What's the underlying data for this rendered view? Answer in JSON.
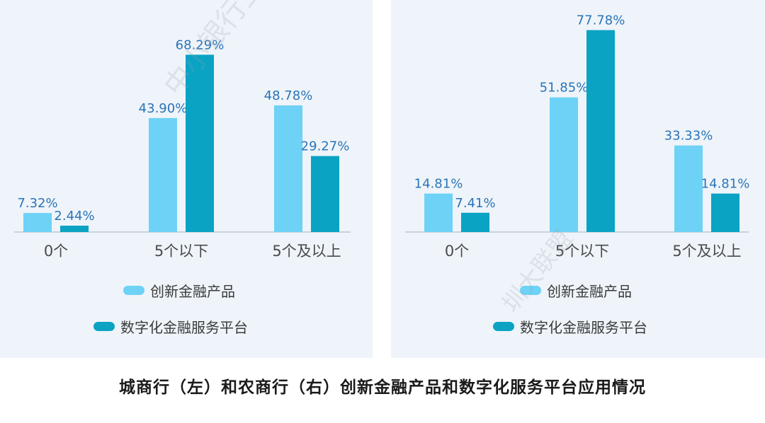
{
  "colors": {
    "series1": "#6dd2f6",
    "series2": "#0aa3c4",
    "axis": "#c9d3dc",
    "value_label": "#2b74b8",
    "tick_label": "#4a4a4a"
  },
  "chart_data": [
    {
      "type": "bar",
      "categories": [
        "0个",
        "5个以下",
        "5个及以上"
      ],
      "series": [
        {
          "name": "创新金融产品",
          "values": [
            7.32,
            43.9,
            48.78
          ],
          "labels": [
            "7.32%",
            "43.90%",
            "48.78%"
          ]
        },
        {
          "name": "数字化金融服务平台",
          "values": [
            2.44,
            68.29,
            29.27
          ],
          "labels": [
            "2.44%",
            "68.29%",
            "29.27%"
          ]
        }
      ],
      "ylim": [
        0,
        100
      ],
      "grid": false,
      "legend": "bottom"
    },
    {
      "type": "bar",
      "categories": [
        "0个",
        "5个以下",
        "5个及以上"
      ],
      "series": [
        {
          "name": "创新金融产品",
          "values": [
            14.81,
            51.85,
            33.33
          ],
          "labels": [
            "14.81%",
            "51.85%",
            "33.33%"
          ]
        },
        {
          "name": "数字化金融服务平台",
          "values": [
            7.41,
            77.78,
            14.81
          ],
          "labels": [
            "7.41%",
            "77.78%",
            "14.81%"
          ]
        }
      ],
      "ylim": [
        0,
        100
      ],
      "grid": false,
      "legend": "bottom"
    }
  ],
  "caption": "城商行（左）和农商行（右）创新金融产品和数字化服务平台应用情况",
  "watermark": {
    "text1": "中小银行互联网",
    "text2": "圳大联盟"
  }
}
